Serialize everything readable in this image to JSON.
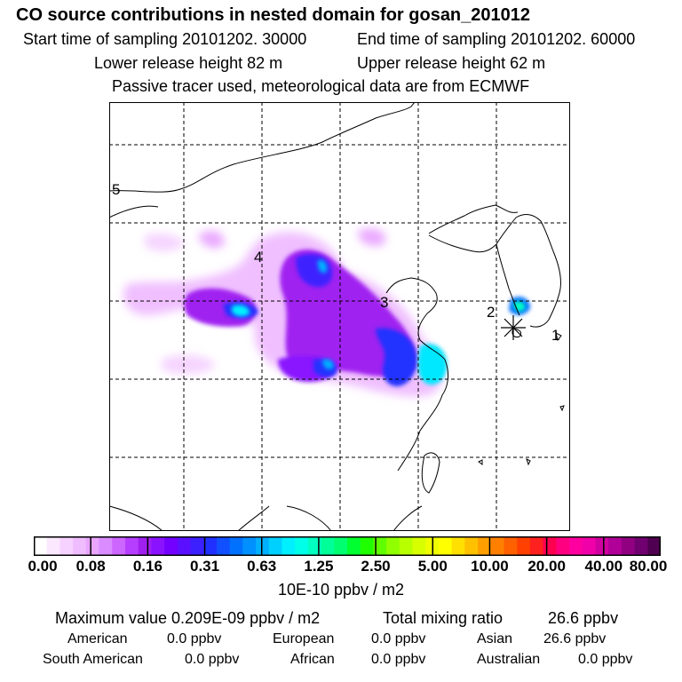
{
  "header": {
    "title": "CO  source contributions in nested domain for gosan_201012",
    "start_time": "Start time of sampling 20101202. 30000",
    "end_time": "End time of sampling 20101202. 60000",
    "lower_release": "Lower release height   82 m",
    "upper_release": "Upper release height   62 m",
    "tracer_note": "Passive tracer used, meteorological data are from ECMWF"
  },
  "map": {
    "point_labels": [
      "1",
      "2",
      "3",
      "4",
      "5"
    ]
  },
  "colorbar": {
    "tick_labels": [
      "0.00",
      "0.08",
      "0.16",
      "0.31",
      "0.63",
      "1.25",
      "2.50",
      "5.00",
      "10.00",
      "20.00",
      "40.00",
      "80.00"
    ],
    "colors": [
      "#ffffff",
      "#fbe8ff",
      "#f5d2ff",
      "#efbcff",
      "#e9a5ff",
      "#d98bff",
      "#cc66ff",
      "#b63fff",
      "#a020f0",
      "#8a12ff",
      "#7400ff",
      "#5a10ff",
      "#3c20ff",
      "#2030ff",
      "#1050ff",
      "#0070ff",
      "#0090ff",
      "#00b0ff",
      "#00d0ff",
      "#00f0ff",
      "#00ffe8",
      "#00ffc0",
      "#00ff98",
      "#00ff70",
      "#00ff30",
      "#20ff00",
      "#60ff00",
      "#90ff00",
      "#b8ff00",
      "#d8ff00",
      "#f0ff00",
      "#ffff00",
      "#ffe000",
      "#ffc000",
      "#ffa000",
      "#ff8000",
      "#ff6000",
      "#ff4000",
      "#ff2020",
      "#ff0050",
      "#ff0080",
      "#ff00a0",
      "#f000a8",
      "#d000a0",
      "#b00098",
      "#900080",
      "#700070",
      "#500050"
    ],
    "units": "10E-10 ppbv / m2"
  },
  "summary": {
    "max_label": "Maximum value  0.209E-09 ppbv / m2",
    "total_label": "Total mixing ratio",
    "total_value": "26.6 ppbv",
    "sources": [
      {
        "name": "American",
        "value": "0.0 ppbv"
      },
      {
        "name": "European",
        "value": "0.0 ppbv"
      },
      {
        "name": "Asian",
        "value": "26.6 ppbv"
      },
      {
        "name": "South American",
        "value": "0.0 ppbv"
      },
      {
        "name": "African",
        "value": "0.0 ppbv"
      },
      {
        "name": "Australian",
        "value": "0.0 ppbv"
      }
    ]
  }
}
